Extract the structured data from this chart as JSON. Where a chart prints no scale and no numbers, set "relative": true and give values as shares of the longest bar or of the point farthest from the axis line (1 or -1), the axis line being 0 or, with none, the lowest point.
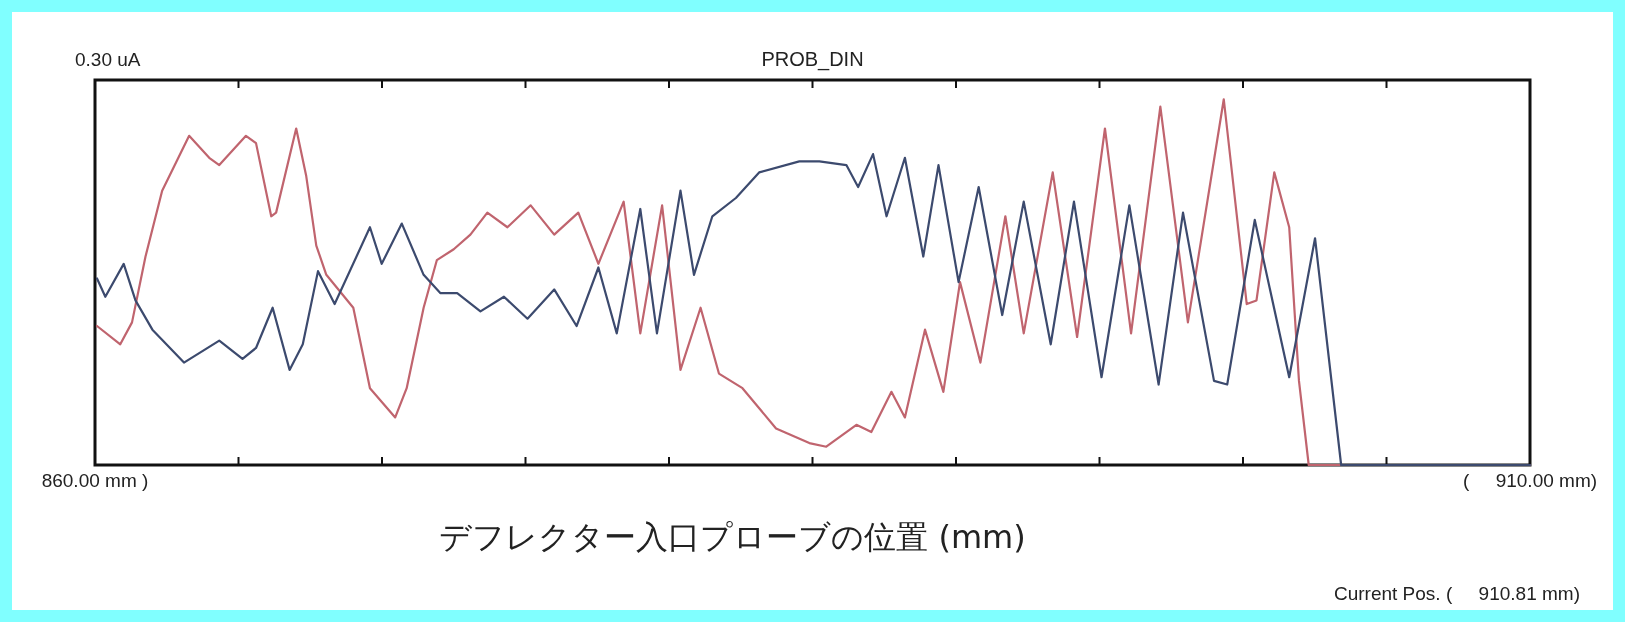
{
  "chart_data": {
    "type": "line",
    "title": "PROB_DIN",
    "xlabel": "デフレクター入口プローブの位置 (mm)",
    "relative": true,
    "line_style": "solid",
    "annotations": [
      "0.30 uA",
      "Current Pos. (     910.81 mm)"
    ],
    "xlim": [
      860,
      910
    ],
    "xticks": [
      {
        "value": 860,
        "label": "860.00 mm )"
      },
      {
        "value": 865,
        "label": null
      },
      {
        "value": 870,
        "label": null
      },
      {
        "value": 875,
        "label": null
      },
      {
        "value": 880,
        "label": null
      },
      {
        "value": 885,
        "label": null
      },
      {
        "value": 890,
        "label": null
      },
      {
        "value": 895,
        "label": null
      },
      {
        "value": 900,
        "label": null
      },
      {
        "value": 905,
        "label": null
      },
      {
        "value": 910,
        "label": "(     910.00 mm)"
      }
    ],
    "series": [
      {
        "color": "#c0646e",
        "x": [
          860.07,
          860.88,
          861.29,
          861.76,
          862.34,
          863.28,
          863.98,
          864.33,
          865.26,
          865.61,
          866.14,
          866.31,
          867.01,
          867.36,
          867.71,
          868.06,
          869.0,
          869.58,
          870.46,
          870.86,
          871.45,
          871.91,
          872.5,
          873.08,
          873.67,
          874.37,
          875.18,
          876.0,
          876.84,
          877.54,
          878.42,
          879.0,
          879.76,
          880.4,
          881.1,
          881.74,
          882.56,
          883.73,
          884.89,
          885.48,
          886.53,
          887.05,
          887.75,
          888.22,
          888.92,
          889.56,
          890.14,
          890.85,
          891.72,
          892.36,
          893.37,
          894.22,
          895.19,
          896.1,
          897.12,
          898.08,
          899.33,
          900.13,
          900.47,
          901.09,
          901.61,
          901.95,
          902.29,
          910.0
        ],
        "values": [
          0.38,
          0.33,
          0.39,
          0.57,
          0.75,
          0.9,
          0.84,
          0.82,
          0.9,
          0.88,
          0.68,
          0.69,
          0.92,
          0.79,
          0.6,
          0.52,
          0.43,
          0.21,
          0.13,
          0.21,
          0.43,
          0.56,
          0.59,
          0.63,
          0.69,
          0.65,
          0.71,
          0.63,
          0.69,
          0.55,
          0.72,
          0.36,
          0.71,
          0.26,
          0.43,
          0.25,
          0.21,
          0.1,
          0.06,
          0.05,
          0.11,
          0.09,
          0.2,
          0.13,
          0.37,
          0.2,
          0.5,
          0.28,
          0.68,
          0.36,
          0.8,
          0.35,
          0.92,
          0.36,
          0.98,
          0.39,
          1.0,
          0.44,
          0.45,
          0.8,
          0.65,
          0.23,
          0.0,
          0.0
        ]
      },
      {
        "color": "#3c4a6e",
        "x": [
          860.07,
          860.36,
          861.0,
          861.41,
          862.0,
          863.1,
          864.33,
          865.14,
          865.61,
          866.19,
          866.78,
          867.24,
          867.77,
          868.35,
          869.58,
          869.99,
          870.69,
          871.45,
          872.03,
          872.62,
          873.43,
          874.25,
          875.07,
          876.0,
          876.78,
          877.54,
          878.18,
          879.0,
          879.58,
          880.4,
          880.87,
          881.51,
          882.33,
          883.14,
          884.54,
          885.24,
          886.18,
          886.59,
          887.11,
          887.58,
          888.22,
          888.86,
          889.39,
          890.09,
          890.79,
          891.61,
          892.36,
          893.3,
          894.11,
          895.07,
          896.04,
          897.06,
          897.91,
          898.99,
          899.45,
          900.41,
          901.61,
          902.51,
          903.42,
          910.0
        ],
        "values": [
          0.51,
          0.46,
          0.55,
          0.45,
          0.37,
          0.28,
          0.34,
          0.29,
          0.32,
          0.43,
          0.26,
          0.33,
          0.53,
          0.44,
          0.65,
          0.55,
          0.66,
          0.52,
          0.47,
          0.47,
          0.42,
          0.46,
          0.4,
          0.48,
          0.38,
          0.54,
          0.36,
          0.7,
          0.36,
          0.75,
          0.52,
          0.68,
          0.73,
          0.8,
          0.83,
          0.83,
          0.82,
          0.76,
          0.85,
          0.68,
          0.84,
          0.57,
          0.82,
          0.5,
          0.76,
          0.41,
          0.72,
          0.33,
          0.72,
          0.24,
          0.71,
          0.22,
          0.69,
          0.23,
          0.22,
          0.67,
          0.24,
          0.62,
          0.0,
          0.0
        ]
      }
    ]
  }
}
